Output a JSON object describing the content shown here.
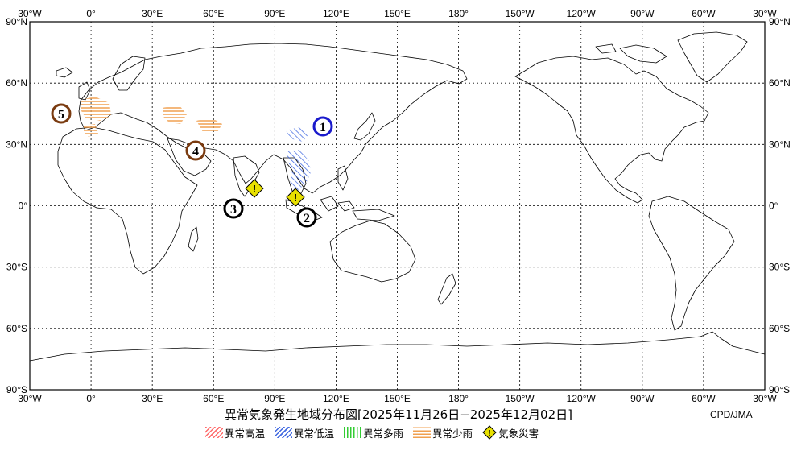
{
  "title": "異常気象発生地域分布図[2025年11月26日−2025年12月02日]",
  "credit": "CPD/JMA",
  "axes": {
    "lon_labels": [
      "30°W",
      "0°",
      "30°E",
      "60°E",
      "90°E",
      "120°E",
      "150°E",
      "180°",
      "150°W",
      "120°W",
      "90°W",
      "60°W",
      "30°W"
    ],
    "lat_labels_left": [
      "90°N",
      "60°N",
      "30°N",
      "0°",
      "30°S",
      "60°S",
      "90°S"
    ],
    "lat_labels_right": [
      "90°N",
      "60°N",
      "30°N",
      "0°",
      "30°S",
      "60°S",
      "90°S"
    ]
  },
  "legend": [
    {
      "key": "hot",
      "label": "異常高温",
      "color": "#ff6b6b"
    },
    {
      "key": "cold",
      "label": "異常低温",
      "color": "#4169e1"
    },
    {
      "key": "wet",
      "label": "異常多雨",
      "color": "#33cc33"
    },
    {
      "key": "dry",
      "label": "異常少雨",
      "color": "#f0a050"
    },
    {
      "key": "disaster",
      "label": "気象災害",
      "color": "#e8e000"
    }
  ],
  "markers": [
    {
      "id": "1",
      "category": "cold"
    },
    {
      "id": "2",
      "category": "disaster"
    },
    {
      "id": "3",
      "category": "disaster"
    },
    {
      "id": "4",
      "category": "dry"
    },
    {
      "id": "5",
      "category": "dry"
    }
  ],
  "marker_colors": {
    "cold": "#1a1acc",
    "disaster": "#000000",
    "dry": "#7a3b10"
  },
  "disaster_symbol": "!"
}
